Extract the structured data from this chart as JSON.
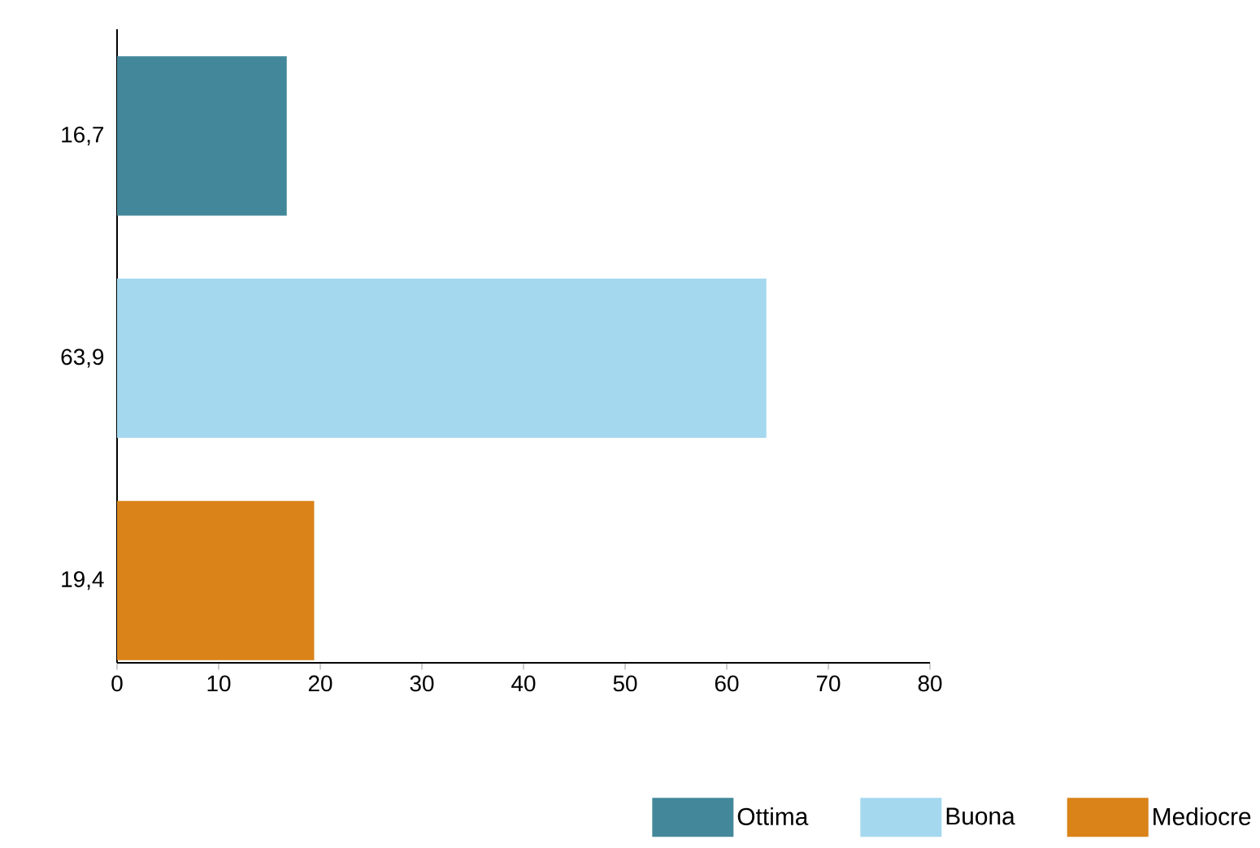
{
  "chart_data": {
    "type": "bar",
    "orientation": "horizontal",
    "categories": [
      "16,7",
      "63,9",
      "19,4"
    ],
    "series": [
      {
        "name": "Ottima",
        "color": "#43889a",
        "values": [
          16.7,
          null,
          null
        ]
      },
      {
        "name": "Buona",
        "color": "#a4d8ef",
        "values": [
          null,
          63.9,
          null
        ]
      },
      {
        "name": "Mediocre",
        "color": "#d98319",
        "values": [
          null,
          null,
          19.4
        ]
      }
    ],
    "xlim": [
      0,
      80
    ],
    "xticks": [
      0,
      10,
      20,
      30,
      40,
      50,
      60,
      70,
      80
    ],
    "legend": "bottom",
    "grid": false
  }
}
